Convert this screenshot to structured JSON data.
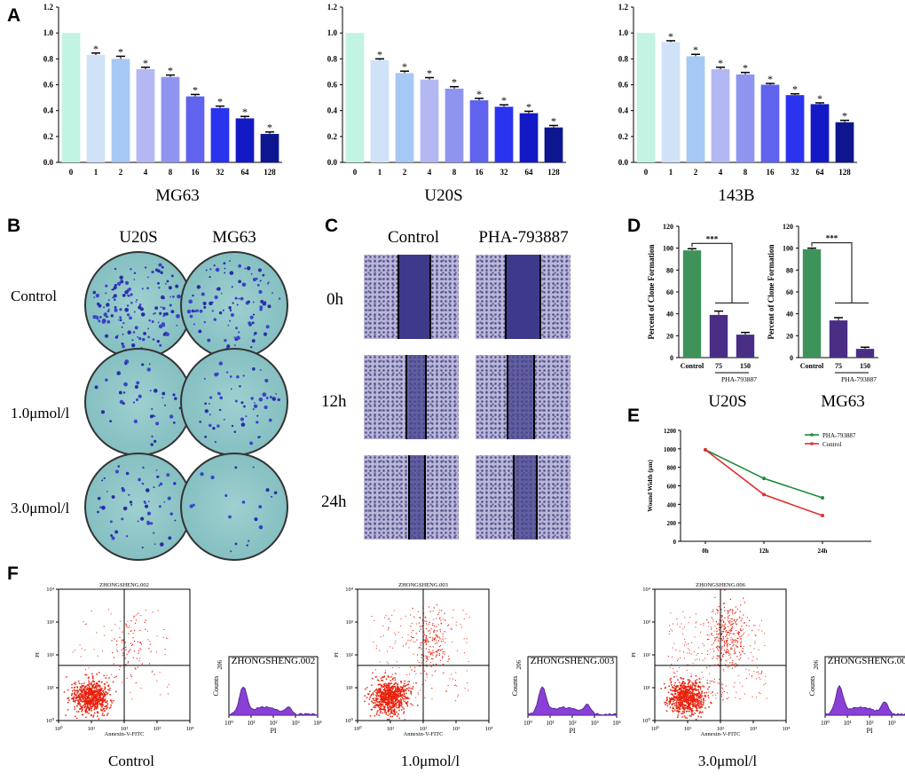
{
  "panels": {
    "A": "A",
    "B": "B",
    "C": "C",
    "D": "D",
    "E": "E",
    "F": "F"
  },
  "colors": {
    "palette": [
      "#c2f3e3",
      "#cfe2f8",
      "#a6c8f4",
      "#b3b8f2",
      "#8f95ef",
      "#5f63ee",
      "#2a33ee",
      "#1319c5",
      "#0d168e"
    ],
    "green": "#3f935a",
    "purple": "#4a2e86",
    "lineGreen": "#1f8a3b",
    "lineRed": "#e03030"
  },
  "chart_data": [
    {
      "type": "bar",
      "title": "MG63",
      "categories": [
        "0",
        "1",
        "2",
        "4",
        "8",
        "16",
        "32",
        "64",
        "128"
      ],
      "values": [
        1.0,
        0.83,
        0.8,
        0.72,
        0.66,
        0.51,
        0.42,
        0.34,
        0.22
      ],
      "errors": [
        0,
        0.015,
        0.02,
        0.015,
        0.015,
        0.015,
        0.015,
        0.015,
        0.015
      ],
      "annotations": [
        "",
        "*",
        "*",
        "*",
        "*",
        "*",
        "*",
        "*",
        "*"
      ],
      "yticks": [
        "0.0",
        "0.2",
        "0.4",
        "0.6",
        "0.8",
        "1.0",
        "1.2"
      ],
      "ylim": [
        0,
        1.2
      ]
    },
    {
      "type": "bar",
      "title": "U20S",
      "categories": [
        "0",
        "1",
        "2",
        "4",
        "8",
        "16",
        "32",
        "64",
        "128"
      ],
      "values": [
        1.0,
        0.79,
        0.69,
        0.64,
        0.57,
        0.48,
        0.43,
        0.38,
        0.27
      ],
      "errors": [
        0,
        0.01,
        0.015,
        0.015,
        0.015,
        0.015,
        0.015,
        0.015,
        0.015
      ],
      "annotations": [
        "",
        "*",
        "*",
        "*",
        "*",
        "*",
        "*",
        "*",
        "*"
      ],
      "yticks": [
        "0.0",
        "0.2",
        "0.4",
        "0.6",
        "0.8",
        "1.0",
        "1.2"
      ],
      "ylim": [
        0,
        1.2
      ]
    },
    {
      "type": "bar",
      "title": "143B",
      "categories": [
        "0",
        "1",
        "2",
        "4",
        "8",
        "16",
        "32",
        "64",
        "128"
      ],
      "values": [
        1.0,
        0.93,
        0.82,
        0.72,
        0.68,
        0.6,
        0.52,
        0.45,
        0.31
      ],
      "errors": [
        0,
        0.01,
        0.015,
        0.015,
        0.015,
        0.01,
        0.01,
        0.01,
        0.015
      ],
      "annotations": [
        "",
        "*",
        "*",
        "*",
        "*",
        "*",
        "*",
        "*",
        "*"
      ],
      "yticks": [
        "0.0",
        "0.2",
        "0.4",
        "0.6",
        "0.8",
        "1.0",
        "1.2"
      ],
      "ylim": [
        0,
        1.2
      ]
    },
    {
      "type": "bar",
      "title": "U20S",
      "ylabel": "Percent of Clone Formation",
      "categories": [
        "Control",
        "75",
        "150"
      ],
      "values": [
        98,
        39,
        21
      ],
      "errors": [
        1.5,
        3.5,
        2
      ],
      "sig": "***",
      "group_label": "PHA-793887",
      "yticks": [
        "0",
        "20",
        "40",
        "60",
        "80",
        "100",
        "120"
      ],
      "ylim": [
        0,
        120
      ]
    },
    {
      "type": "bar",
      "title": "MG63",
      "ylabel": "Percent of Clone Formation",
      "categories": [
        "Control",
        "75",
        "150"
      ],
      "values": [
        99,
        34,
        8
      ],
      "errors": [
        1,
        2.5,
        1.5
      ],
      "sig": "***",
      "group_label": "PHA-793887",
      "yticks": [
        "0",
        "20",
        "40",
        "60",
        "80",
        "100",
        "120"
      ],
      "ylim": [
        0,
        120
      ]
    },
    {
      "type": "line",
      "ylabel": "Wound Width (μm)",
      "categories": [
        "0h",
        "12h",
        "24h"
      ],
      "series": [
        {
          "name": "PHA-793887",
          "values": [
            990,
            680,
            470
          ]
        },
        {
          "name": "Control",
          "values": [
            990,
            505,
            278
          ]
        }
      ],
      "yticks": [
        "0",
        "200",
        "400",
        "600",
        "800",
        "1000",
        "1200"
      ],
      "ylim": [
        0,
        1200
      ]
    }
  ],
  "colony": {
    "cols": [
      "U20S",
      "MG63"
    ],
    "rows": [
      "Control",
      "1.0μmol/l",
      "3.0μmol/l"
    ]
  },
  "wound": {
    "cols": [
      "Control",
      "PHA-793887"
    ],
    "rows": [
      "0h",
      "12h",
      "24h"
    ]
  },
  "flow": {
    "samples": [
      {
        "name": "ZHONGSHENG.002",
        "condition": "Control"
      },
      {
        "name": "ZHONGSHENG.003",
        "condition": "1.0μmol/l"
      },
      {
        "name": "ZHONGSHENG.006",
        "condition": "3.0μmol/l"
      }
    ],
    "xlabel": "Annexin-V-FITC",
    "ylabel": "PI",
    "ticks": [
      "10⁰",
      "10¹",
      "10²",
      "10³",
      "10⁴"
    ],
    "histYLabel": "Counts",
    "histXLabel": "PI",
    "histYMax": "206"
  }
}
